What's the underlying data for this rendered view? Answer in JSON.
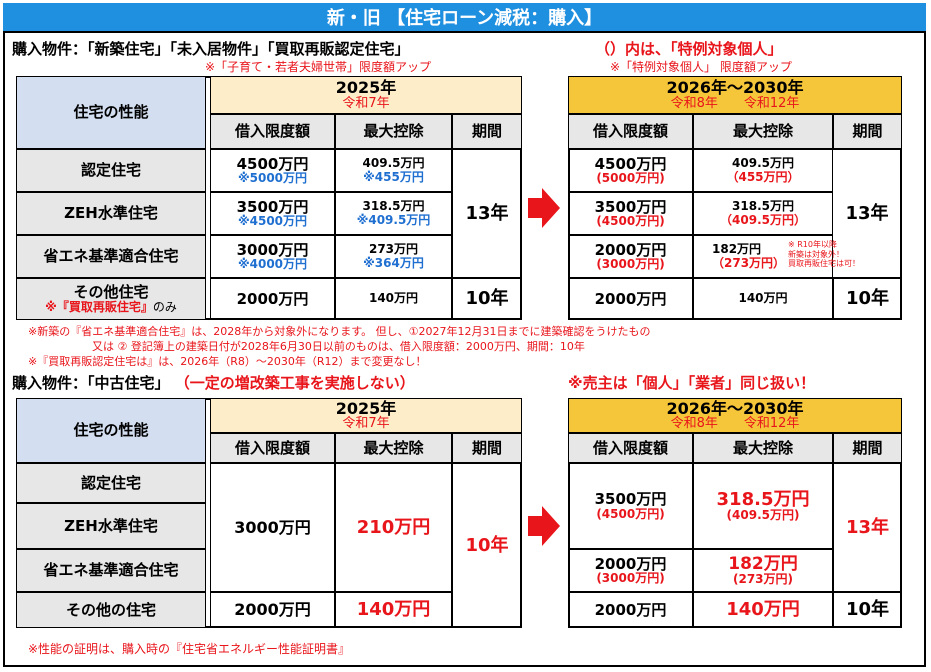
{
  "title": "新・旧 【住宅ローン減税：購入】",
  "section1": {
    "heading": "購入物件：「新築住宅」「未入居物件」「買取再販認定住宅」",
    "special_note": "（）内は、「特例対象個人」",
    "sub_note_left": "※「子育て・若者夫婦世帯」限度額アップ",
    "sub_note_right": "※「特例対象個人」 限度額アップ",
    "perf_header": "住宅の性能",
    "rows": [
      "認定住宅",
      "ZEH水準住宅",
      "省エネ基準適合住宅",
      "その他住宅"
    ],
    "other_sub": "※『買取再販住宅』",
    "other_sub2": "のみ",
    "left_year": "2025年",
    "left_era": "令和7年",
    "right_year": "2026年～2030年",
    "right_era_a": "令和8年",
    "right_era_b": "令和12年",
    "col_limit": "借入限度額",
    "col_deduct": "最大控除",
    "col_period": "期間",
    "left_vals": [
      {
        "limit": "4500万円",
        "limit_alt": "※5000万円",
        "deduct": "409.5万円",
        "deduct_alt": "※455万円"
      },
      {
        "limit": "3500万円",
        "limit_alt": "※4500万円",
        "deduct": "318.5万円",
        "deduct_alt": "※409.5万円"
      },
      {
        "limit": "3000万円",
        "limit_alt": "※4000万円",
        "deduct": "273万円",
        "deduct_alt": "※364万円"
      },
      {
        "limit": "2000万円",
        "limit_alt": "",
        "deduct": "140万円",
        "deduct_alt": ""
      }
    ],
    "left_period_a": "13年",
    "left_period_b": "10年",
    "right_vals": [
      {
        "limit": "4500万円",
        "limit_alt": "(5000万円)",
        "deduct": "409.5万円",
        "deduct_alt": "（455万円）"
      },
      {
        "limit": "3500万円",
        "limit_alt": "(4500万円)",
        "deduct": "318.5万円",
        "deduct_alt": "（409.5万円）"
      },
      {
        "limit": "2000万円",
        "limit_alt": "(3000万円)",
        "deduct": "182万円",
        "deduct_alt": "（273万円）"
      },
      {
        "limit": "2000万円",
        "limit_alt": "",
        "deduct": "140万円",
        "deduct_alt": ""
      }
    ],
    "right_period_a": "13年",
    "right_period_b": "10年",
    "r10_note_1": "※ R10年以降",
    "r10_note_2": "新築は対象外！",
    "r10_note_3": "買取再販住宅は可！",
    "foot1": "※新築の『省エネ基準適合住宅』は、2028年から対象外になります。 但し、①2027年12月31日までに建築確認をうけたもの",
    "foot2": "又は ② 登記簿上の建築日付が2028年6月30日以前のものは、借入限度額：2000万円、",
    "foot2b": "期間：10年",
    "foot3": "※『買取再販認定住宅は』は、2026年（R8）～2030年（R12）まで変更なし！"
  },
  "section2": {
    "heading": "購入物件：「中古住宅」",
    "heading_red": "（一定の増改築工事を実施しない）",
    "seller_note": "※売主は「個人」「業者」同じ扱い！",
    "perf_header": "住宅の性能",
    "rows": [
      "認定住宅",
      "ZEH水準住宅",
      "省エネ基準適合住宅",
      "その他の住宅"
    ],
    "left_year": "2025年",
    "left_era": "令和7年",
    "right_year": "2026年～2030年",
    "right_era_a": "令和8年",
    "right_era_b": "令和12年",
    "col_limit": "借入限度額",
    "col_deduct": "最大控除",
    "col_period": "期間",
    "left_limit_a": "3000万円",
    "left_deduct_a": "210万円",
    "left_limit_b": "2000万円",
    "left_deduct_b": "140万円",
    "left_period": "10年",
    "right_limit_a": "3500万円",
    "right_limit_a_alt": "(4500万円)",
    "right_deduct_a": "318.5万円",
    "right_deduct_a_alt": "(409.5万円)",
    "right_limit_b": "2000万円",
    "right_limit_b_alt": "(3000万円)",
    "right_deduct_b": "182万円",
    "right_deduct_b_alt": "(273万円)",
    "right_limit_c": "2000万円",
    "right_deduct_c": "140万円",
    "right_period_a": "13年",
    "right_period_b": "10年",
    "foot": "※性能の証明は、購入時の『住宅省エネルギー性能証明書』"
  },
  "colors": {
    "title_bg": "#1f8fe0",
    "red": "#e8151b",
    "blue": "#1f6fd1",
    "year_bg": "#fdeec9",
    "perf_bg": "#d3dff0"
  }
}
